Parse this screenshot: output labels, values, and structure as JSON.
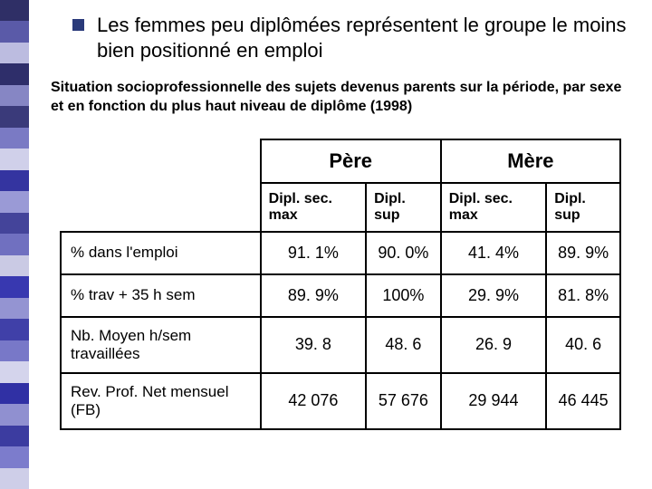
{
  "stripes": [
    "#2f2f66",
    "#5a5aa8",
    "#bcbce0",
    "#2e2e6a",
    "#8686c4",
    "#3a3a7a",
    "#7a7ac4",
    "#d0d0ea",
    "#3434a0",
    "#9a9ad6",
    "#44449a",
    "#7070c0",
    "#cacae4",
    "#3838b0",
    "#9494d2",
    "#4040a8",
    "#7878c8",
    "#d4d4ec",
    "#3030a4",
    "#9090d0",
    "#3c3ca0",
    "#7c7ccc",
    "#cecee8"
  ],
  "bullet_text": "Les femmes peu diplômées représentent le groupe le moins bien positionné en emploi",
  "subtitle": "Situation socioprofessionnelle des sujets devenus  parents sur la période, par sexe et en fonction du plus  haut niveau de diplôme (1998)",
  "table": {
    "group_headers": [
      "Père",
      "Mère"
    ],
    "sub_headers": [
      "Dipl. sec. max",
      "Dipl. sup",
      "Dipl. sec. max",
      "Dipl. sup"
    ],
    "rows": [
      {
        "label": "% dans l'emploi",
        "values": [
          "91. 1%",
          "90. 0%",
          "41. 4%",
          "89. 9%"
        ]
      },
      {
        "label": "% trav + 35 h sem",
        "values": [
          "89. 9%",
          "100%",
          "29. 9%",
          "81. 8%"
        ]
      },
      {
        "label": "Nb. Moyen h/sem travaillées",
        "values": [
          "39. 8",
          "48. 6",
          "26. 9",
          "40. 6"
        ]
      },
      {
        "label": "Rev. Prof. Net mensuel (FB)",
        "values": [
          "42 076",
          "57 676",
          "29 944",
          "46 445"
        ]
      }
    ]
  }
}
